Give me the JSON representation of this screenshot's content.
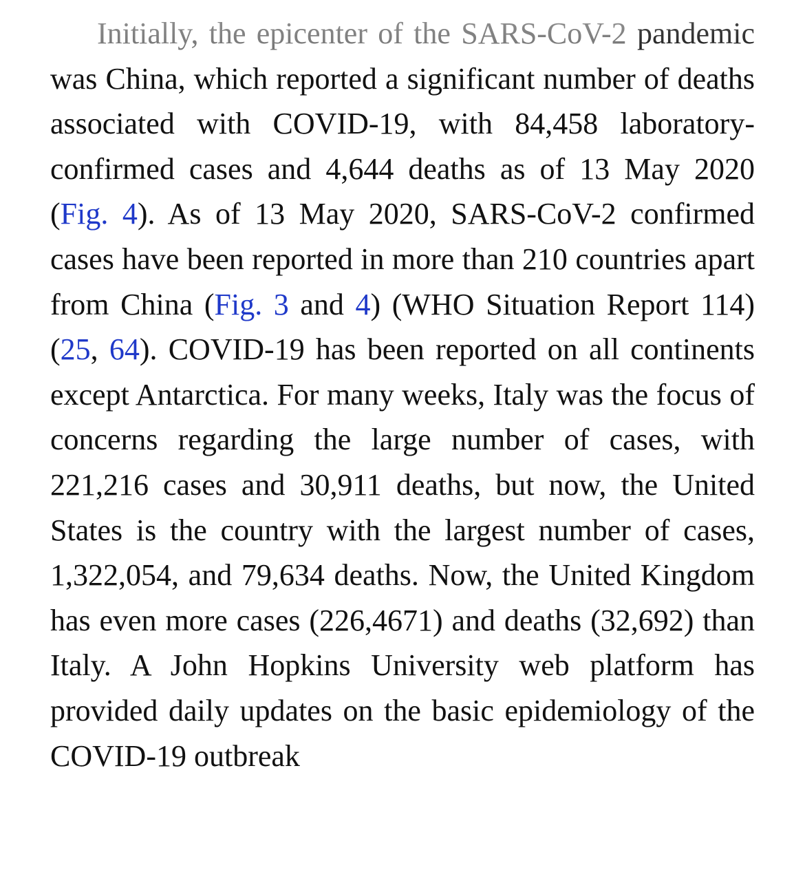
{
  "article": {
    "segments": [
      {
        "text": "Initially, the epicenter of the SARS-CoV-2 ",
        "link": false,
        "faded": true
      },
      {
        "text": "pandemic was China, which reported a significant number of deaths associated with COVID-19, with 84,458 laboratory-confirmed cases and 4,644 deaths as of 13 May 2020 (",
        "link": false
      },
      {
        "text": "Fig. 4",
        "link": true,
        "name": "ref-fig-4"
      },
      {
        "text": "). As of 13 May 2020, SARS-CoV-2 confirmed cases have been reported in more than 210 countries apart from China (",
        "link": false
      },
      {
        "text": "Fig. 3",
        "link": true,
        "name": "ref-fig-3"
      },
      {
        "text": " and ",
        "link": false
      },
      {
        "text": "4",
        "link": true,
        "name": "ref-fig-4-short"
      },
      {
        "text": ") (WHO Situation Report 114) (",
        "link": false
      },
      {
        "text": "25",
        "link": true,
        "name": "ref-citation-25"
      },
      {
        "text": ", ",
        "link": false
      },
      {
        "text": "64",
        "link": true,
        "name": "ref-citation-64"
      },
      {
        "text": "). COVID-19 has been reported on all continents except Antarctica. For many weeks, Italy was the focus of concerns regarding the large number of cases, with 221,216 cases and 30,911 deaths, but now, the United States is the country with the largest number of cases, 1,322,054, and 79,634 deaths. Now, the United Kingdom has even more cases (226,4671) and deaths (32,692) than Italy. A John Hopkins University web platform has provided daily updates on the basic epidemiology of the COVID-19 outbreak",
        "link": false
      }
    ]
  },
  "colors": {
    "text": "#111111",
    "faded_text": "#6b6b6b",
    "link": "#1f39c9",
    "background": "#ffffff"
  }
}
